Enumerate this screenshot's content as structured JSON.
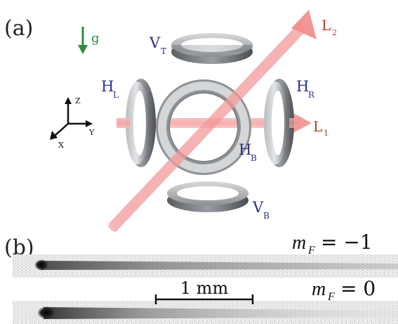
{
  "panel_a": {
    "label": "(a)",
    "gravity_label": "g",
    "axes": {
      "x": "X",
      "y": "Y",
      "z": "Z"
    },
    "coils": {
      "top": {
        "main": "V",
        "sub": "T"
      },
      "bottom": {
        "main": "V",
        "sub": "B"
      },
      "left": {
        "main": "H",
        "sub": "L"
      },
      "right": {
        "main": "H",
        "sub": "R"
      },
      "back": {
        "main": "H",
        "sub": "B"
      }
    },
    "beams": {
      "l1": {
        "main": "L",
        "sub": "1"
      },
      "l2": {
        "main": "L",
        "sub": "2"
      }
    },
    "colors": {
      "coil_label": "#2b2f8a",
      "beam_label": "#c0392b",
      "gravity": "#2e8b3e",
      "beam": "#f4a0a0"
    }
  },
  "panel_b": {
    "label": "(b)",
    "image_1_label": "m_F = −1",
    "image_1": {
      "var": "m",
      "sub": "F",
      "rhs": "= −1"
    },
    "image_2": {
      "var": "m",
      "sub": "F",
      "rhs": "= 0"
    },
    "scale_bar_label": "1 mm"
  }
}
